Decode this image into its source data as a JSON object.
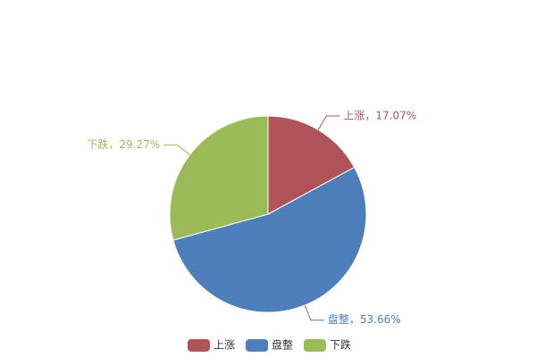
{
  "chart_data": {
    "type": "pie",
    "categories": [
      "上涨",
      "盘整",
      "下跌"
    ],
    "values": [
      17.07,
      53.66,
      29.27
    ],
    "value_labels": [
      "上涨，17.07%",
      "盘整，53.66%",
      "下跌，29.27%"
    ],
    "colors": [
      "#b0545a",
      "#4e7fbb",
      "#9bbb59"
    ],
    "legend": "bottom"
  }
}
